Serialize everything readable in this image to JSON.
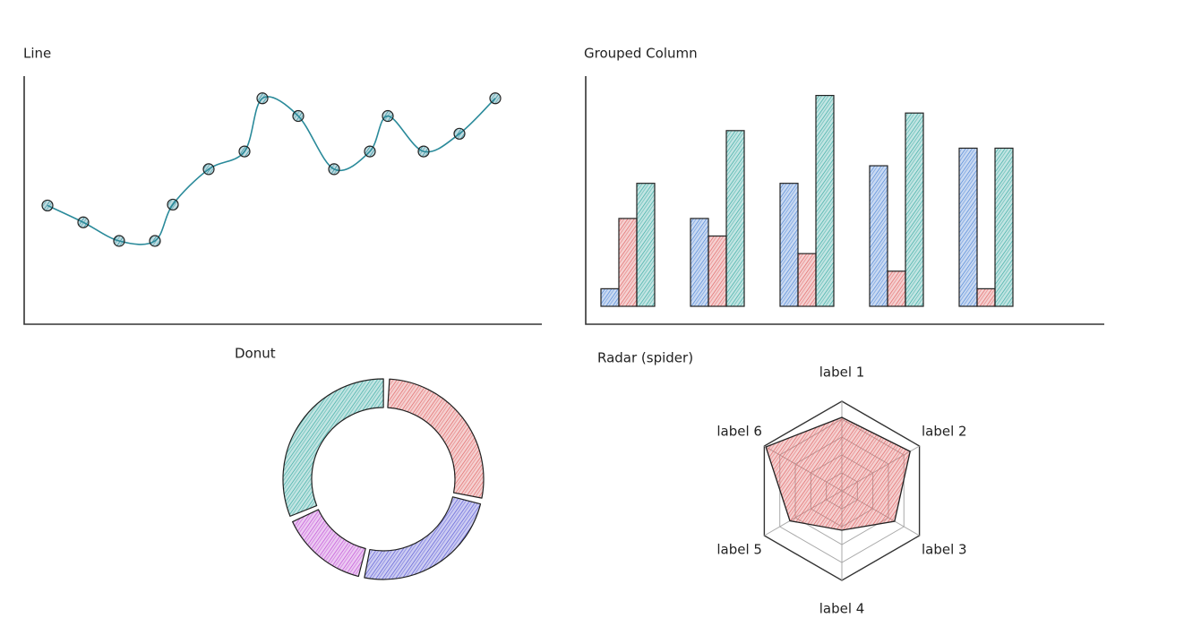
{
  "chart_data": [
    {
      "type": "line",
      "title": "Line",
      "color": "#2a8a9a",
      "x": [
        0,
        2,
        4,
        6,
        7,
        9,
        11,
        12,
        14,
        16,
        18,
        19,
        21,
        23,
        25
      ],
      "values": [
        134,
        115,
        94,
        94,
        135,
        175,
        195,
        255,
        235,
        175,
        195,
        235,
        195,
        215,
        255
      ],
      "xlim": [
        -1.3,
        27.6
      ],
      "ylim": [
        0,
        280
      ]
    },
    {
      "type": "bar",
      "title": "Grouped Column",
      "categories": [
        null,
        null,
        null,
        null,
        null
      ],
      "series": [
        {
          "color": "#4f86d6",
          "values": [
            20,
            100,
            140,
            160,
            180
          ]
        },
        {
          "color": "#e06666",
          "values": [
            100,
            80,
            60,
            40,
            20
          ]
        },
        {
          "color": "#3aaba3",
          "values": [
            140,
            200,
            240,
            220,
            180
          ]
        }
      ],
      "ylim": [
        0,
        262
      ]
    },
    {
      "type": "donut",
      "title": "Donut",
      "categories": [
        null,
        null,
        null,
        null
      ],
      "values": [
        28,
        25,
        15,
        32
      ],
      "colors": [
        "#e06666",
        "#5b5bd6",
        "#c04fd6",
        "#3aaba3"
      ]
    },
    {
      "type": "radar",
      "title": "Radar (spider)",
      "color": "#e06666",
      "categories": [
        "label 1",
        "label 2",
        "label 3",
        "label 4",
        "label 5",
        "label 6"
      ],
      "values": [
        82,
        88,
        68,
        44,
        67,
        98
      ],
      "ylim": [
        0,
        100
      ]
    }
  ]
}
